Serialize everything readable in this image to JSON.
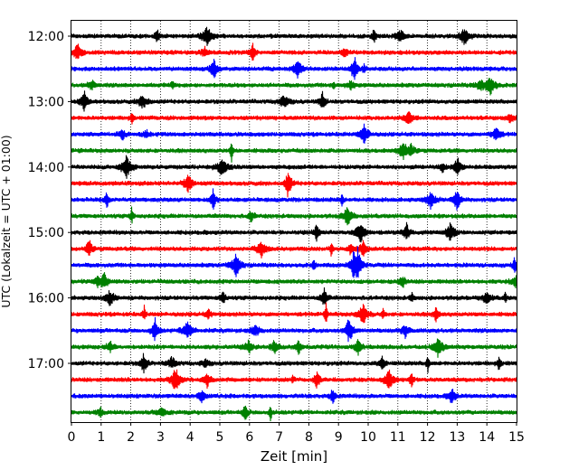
{
  "chart_data": {
    "type": "line",
    "title": "",
    "xlabel": "Zeit  [min]",
    "ylabel": "UTC (Lokalzeit = UTC + 01:00)",
    "xlim": [
      0,
      15
    ],
    "x_ticks": [
      0,
      1,
      2,
      3,
      4,
      5,
      6,
      7,
      8,
      9,
      10,
      11,
      12,
      13,
      14,
      15
    ],
    "y_tick_labels": [
      "12:00",
      "13:00",
      "14:00",
      "15:00",
      "16:00",
      "17:00"
    ],
    "grid": "vertical dotted lines at each minute",
    "colors": [
      "#000000",
      "#ff0000",
      "#0000ff",
      "#008000"
    ],
    "traces": [
      {
        "start": "12:00",
        "color": "#000000"
      },
      {
        "start": "12:15",
        "color": "#ff0000"
      },
      {
        "start": "12:30",
        "color": "#0000ff"
      },
      {
        "start": "12:45",
        "color": "#008000"
      },
      {
        "start": "13:00",
        "color": "#000000"
      },
      {
        "start": "13:15",
        "color": "#ff0000"
      },
      {
        "start": "13:30",
        "color": "#0000ff"
      },
      {
        "start": "13:45",
        "color": "#008000"
      },
      {
        "start": "14:00",
        "color": "#000000"
      },
      {
        "start": "14:15",
        "color": "#ff0000"
      },
      {
        "start": "14:30",
        "color": "#0000ff"
      },
      {
        "start": "14:45",
        "color": "#008000"
      },
      {
        "start": "15:00",
        "color": "#000000"
      },
      {
        "start": "15:15",
        "color": "#ff0000"
      },
      {
        "start": "15:30",
        "color": "#0000ff"
      },
      {
        "start": "15:45",
        "color": "#008000"
      },
      {
        "start": "16:00",
        "color": "#000000"
      },
      {
        "start": "16:15",
        "color": "#ff0000"
      },
      {
        "start": "16:30",
        "color": "#0000ff"
      },
      {
        "start": "16:45",
        "color": "#008000"
      },
      {
        "start": "17:00",
        "color": "#000000"
      },
      {
        "start": "17:15",
        "color": "#ff0000"
      },
      {
        "start": "17:30",
        "color": "#0000ff"
      },
      {
        "start": "17:45",
        "color": "#008000"
      }
    ]
  }
}
